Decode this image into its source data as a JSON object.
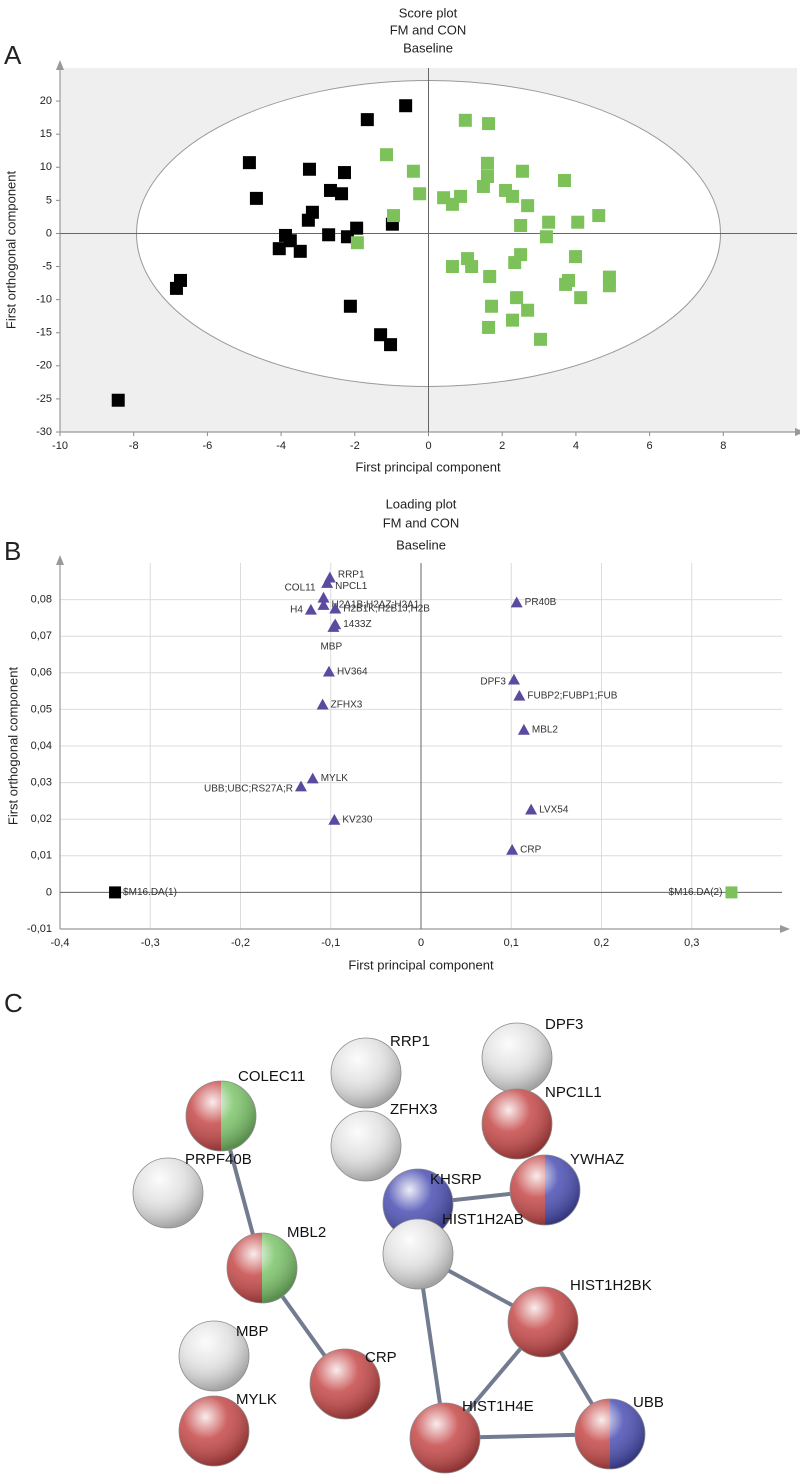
{
  "chart_data": [
    {
      "type": "scatter",
      "panel_label": "A",
      "title": [
        "Score plot",
        "FM and CON",
        "Baseline"
      ],
      "x_label": "First principal component",
      "y_label": "First orthogonal component",
      "xlim": [
        -10,
        10
      ],
      "ylim": [
        -30,
        25
      ],
      "xticks": [
        -10,
        -8,
        -6,
        -4,
        -2,
        0,
        2,
        4,
        6,
        8
      ],
      "yticks": [
        -30,
        -25,
        -20,
        -15,
        -10,
        -5,
        0,
        5,
        10,
        15,
        20
      ],
      "grid": false,
      "series": [
        {
          "color": "#000000",
          "marker": "square",
          "x": [
            -0.62,
            -1.66,
            -4.86,
            -4.67,
            -3.23,
            -2.28,
            -2.66,
            -2.36,
            -3.15,
            -3.26,
            -3.88,
            -3.75,
            -4.05,
            -3.48,
            -2.71,
            -2.2,
            -1.95,
            -0.98,
            -2.12,
            -1.3,
            -1.03,
            -6.73,
            -6.84,
            -8.42
          ],
          "y": [
            19.3,
            17.2,
            10.7,
            5.3,
            9.7,
            9.2,
            6.5,
            6.0,
            3.2,
            2.0,
            -0.3,
            -1.1,
            -2.3,
            -2.7,
            -0.2,
            -0.5,
            0.8,
            1.4,
            -11.0,
            -15.3,
            -16.8,
            -7.1,
            -8.3,
            -25.2
          ]
        },
        {
          "color": "#7cc15a",
          "marker": "square",
          "x": [
            1.0,
            1.63,
            -1.14,
            -0.41,
            1.6,
            1.6,
            1.49,
            2.55,
            3.69,
            2.09,
            2.28,
            0.41,
            0.87,
            0.65,
            -0.24,
            2.69,
            2.5,
            3.26,
            4.05,
            4.62,
            3.2,
            -0.95,
            -1.93,
            1.06,
            0.65,
            1.17,
            1.66,
            2.34,
            2.5,
            3.99,
            3.8,
            3.72,
            4.13,
            4.91,
            4.91,
            2.39,
            2.69,
            2.28,
            1.71,
            1.63,
            3.04
          ],
          "y": [
            17.1,
            16.6,
            11.9,
            9.4,
            10.6,
            8.6,
            7.1,
            9.4,
            8.0,
            6.5,
            5.6,
            5.4,
            5.6,
            4.4,
            6.0,
            4.2,
            1.2,
            1.7,
            1.7,
            2.7,
            -0.5,
            2.7,
            -1.4,
            -3.8,
            -5.0,
            -5.0,
            -6.5,
            -4.4,
            -3.2,
            -3.5,
            -7.1,
            -7.7,
            -9.7,
            -6.6,
            -7.9,
            -9.7,
            -11.6,
            -13.1,
            -11.0,
            -14.2,
            -16.0
          ]
        }
      ]
    },
    {
      "type": "scatter",
      "panel_label": "B",
      "title": [
        "Loading plot",
        "FM and CON",
        "Baseline"
      ],
      "x_label": "First principal component",
      "y_label": "First orthogonal component",
      "xlim": [
        -0.4,
        0.4
      ],
      "ylim": [
        -0.01,
        0.09
      ],
      "xticks": [
        {
          "value": -0.4,
          "label": "-0,4"
        },
        {
          "value": -0.3,
          "label": "-0,3"
        },
        {
          "value": -0.2,
          "label": "-0,2"
        },
        {
          "value": -0.1,
          "label": "-0,1"
        },
        0,
        {
          "value": 0.1,
          "label": "0,1"
        },
        {
          "value": 0.2,
          "label": "0,2"
        },
        {
          "value": 0.3,
          "label": "0,3"
        }
      ],
      "yticks": [
        {
          "value": -0.01,
          "label": "-0,01"
        },
        0,
        {
          "value": 0.01,
          "label": "0,01"
        },
        {
          "value": 0.02,
          "label": "0,02"
        },
        {
          "value": 0.03,
          "label": "0,03"
        },
        {
          "value": 0.04,
          "label": "0,04"
        },
        {
          "value": 0.05,
          "label": "0,05"
        },
        {
          "value": 0.06,
          "label": "0,06"
        },
        {
          "value": 0.07,
          "label": "0,07"
        },
        {
          "value": 0.08,
          "label": "0,08"
        }
      ],
      "grid": true,
      "series": [
        {
          "color": "#5b4a9e",
          "marker": "triangle",
          "point_labels": [
            "RRP1",
            "NPCL1",
            "COL11",
            "H2A1B;H2AZ;H2A1",
            "H4",
            "H2B1K;H2B1J;H2B",
            "1433Z",
            "MBP",
            "HV364",
            "ZFHX3",
            "MYLK",
            "UBB;UBC;RS27A;R",
            "KV230",
            "PR40B",
            "DPF3",
            "FUBP2;FUBP1;FUB",
            "MBL2",
            "LVX54",
            "CRP"
          ],
          "x": [
            -0.101,
            -0.104,
            -0.108,
            -0.108,
            -0.122,
            -0.095,
            -0.095,
            -0.097,
            -0.102,
            -0.109,
            -0.12,
            -0.133,
            -0.096,
            0.106,
            0.103,
            0.109,
            0.114,
            0.122,
            0.101
          ],
          "y": [
            0.086,
            0.0845,
            0.0805,
            0.0785,
            0.0772,
            0.0775,
            0.0732,
            0.0725,
            0.0603,
            0.0513,
            0.0311,
            0.0289,
            0.0198,
            0.0792,
            0.0581,
            0.0537,
            0.0444,
            0.0226,
            0.0116
          ]
        },
        {
          "color": "#000000",
          "marker": "square",
          "point_labels": [
            "$M16.DA(1)"
          ],
          "x": [
            -0.339
          ],
          "y": [
            0
          ]
        },
        {
          "color": "#7cc15a",
          "marker": "square",
          "point_labels": [
            "$M16.DA(2)"
          ],
          "x": [
            0.344
          ],
          "y": [
            0
          ]
        }
      ]
    }
  ],
  "network": {
    "panel_label": "C",
    "nodes": [
      {
        "label": "COLEC11",
        "colors": [
          "#c64848",
          "#7cc46a"
        ]
      },
      {
        "label": "RRP1",
        "colors": [
          "#e2e2e2"
        ]
      },
      {
        "label": "DPF3",
        "colors": [
          "#e2e2e2"
        ]
      },
      {
        "label": "NPC1L1",
        "colors": [
          "#c64848"
        ]
      },
      {
        "label": "ZFHX3",
        "colors": [
          "#e2e2e2"
        ]
      },
      {
        "label": "PRPF40B",
        "colors": [
          "#e2e2e2"
        ]
      },
      {
        "label": "KHSRP",
        "colors": [
          "#4b4fb3"
        ]
      },
      {
        "label": "YWHAZ",
        "colors": [
          "#c64848",
          "#4b4fb3"
        ]
      },
      {
        "label": "MBL2",
        "colors": [
          "#c64848",
          "#7cc46a"
        ]
      },
      {
        "label": "HIST1H2AB",
        "colors": [
          "#e2e2e2"
        ]
      },
      {
        "label": "HIST1H2BK",
        "colors": [
          "#c64848"
        ]
      },
      {
        "label": "MBP",
        "colors": [
          "#e2e2e2"
        ]
      },
      {
        "label": "CRP",
        "colors": [
          "#c64848"
        ]
      },
      {
        "label": "MYLK",
        "colors": [
          "#c64848"
        ]
      },
      {
        "label": "HIST1H4E",
        "colors": [
          "#c64848"
        ]
      },
      {
        "label": "UBB",
        "colors": [
          "#c64848",
          "#4b4fb3"
        ]
      }
    ],
    "edges": [
      [
        0,
        8
      ],
      [
        8,
        12
      ],
      [
        6,
        7
      ],
      [
        9,
        10
      ],
      [
        9,
        14
      ],
      [
        10,
        14
      ],
      [
        10,
        15
      ],
      [
        14,
        15
      ]
    ]
  }
}
